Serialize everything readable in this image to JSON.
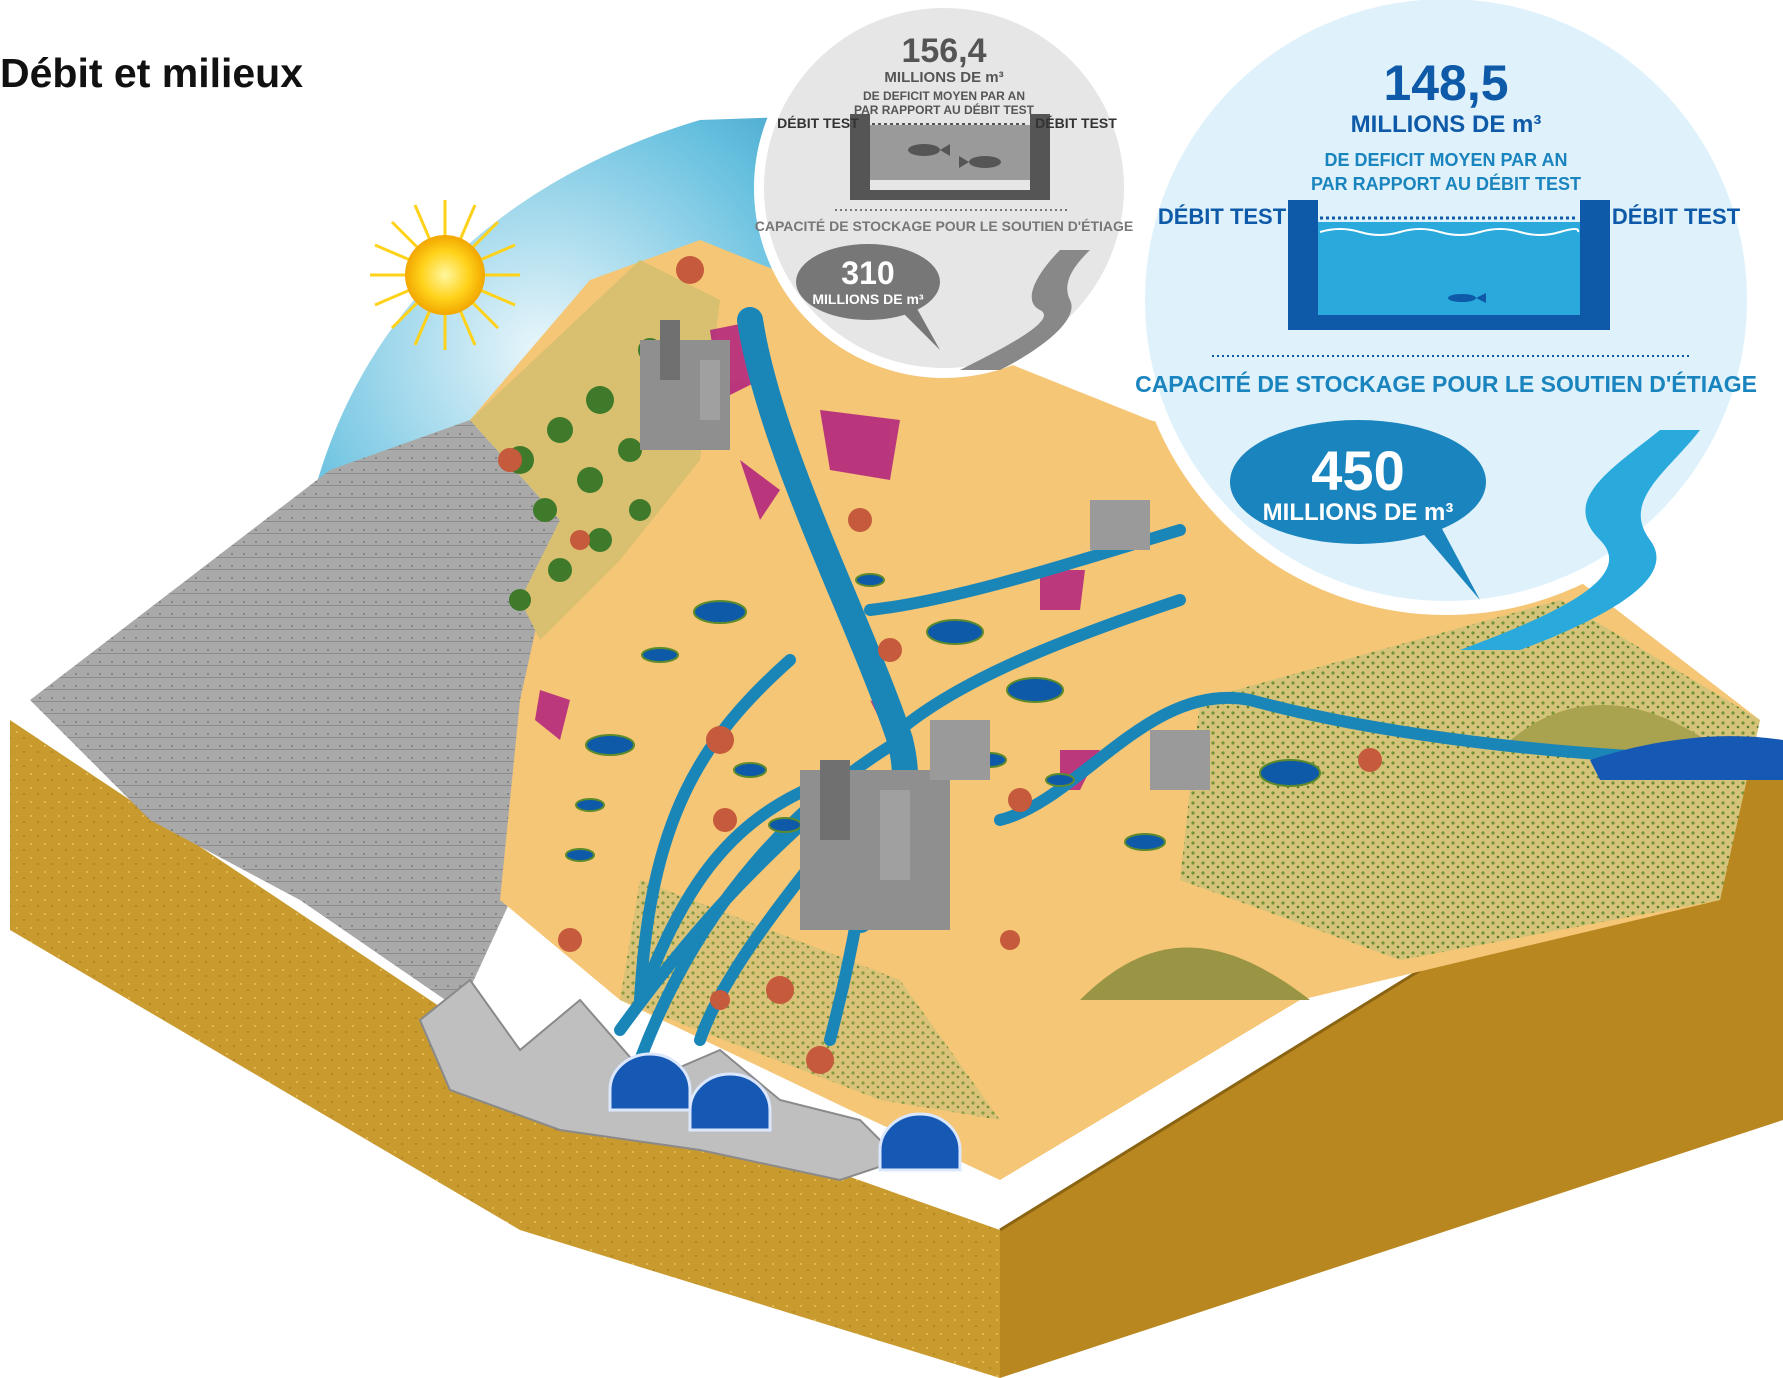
{
  "page": {
    "title": "Débit et milieux"
  },
  "colors": {
    "sky": "#3aa3c9",
    "ground": "#f5c676",
    "river": "#1a86b8",
    "bubble_current_bg": "#dff2fb",
    "bubble_current_text": "#1a84be",
    "bubble_current_dark": "#0e5aa8",
    "bubble_future_bg": "#e6e6e6",
    "bubble_future_text": "#555555",
    "soil": "#c8962a",
    "urban_pink": "#b01e7e"
  },
  "icons": [
    "sun-icon",
    "fish-icon",
    "river-icon",
    "dam-icon",
    "city-icon",
    "village-icon",
    "forest-icon",
    "reservoir-icon",
    "mountain-icon"
  ],
  "bubbles": {
    "future": {
      "deficit_value": "156,4",
      "deficit_unit": "MILLIONS DE m³",
      "deficit_text_1": "DE DEFICIT MOYEN PAR AN",
      "deficit_text_2": "PAR RAPPORT AU DÉBIT TEST",
      "test_left": "DÉBIT TEST",
      "test_right": "DÉBIT TEST",
      "storage_label": "CAPACITÉ DE STOCKAGE POUR LE SOUTIEN D'ÉTIAGE",
      "storage_value": "310",
      "storage_unit": "MILLIONS DE m³"
    },
    "current": {
      "deficit_value": "148,5",
      "deficit_unit": "MILLIONS DE m³",
      "deficit_text_1": "DE DEFICIT MOYEN PAR AN",
      "deficit_text_2": "PAR RAPPORT AU DÉBIT TEST",
      "test_left": "DÉBIT TEST",
      "test_right": "DÉBIT TEST",
      "storage_label": "CAPACITÉ DE STOCKAGE POUR LE SOUTIEN D'ÉTIAGE",
      "storage_value": "450",
      "storage_unit": "MILLIONS DE m³"
    }
  }
}
